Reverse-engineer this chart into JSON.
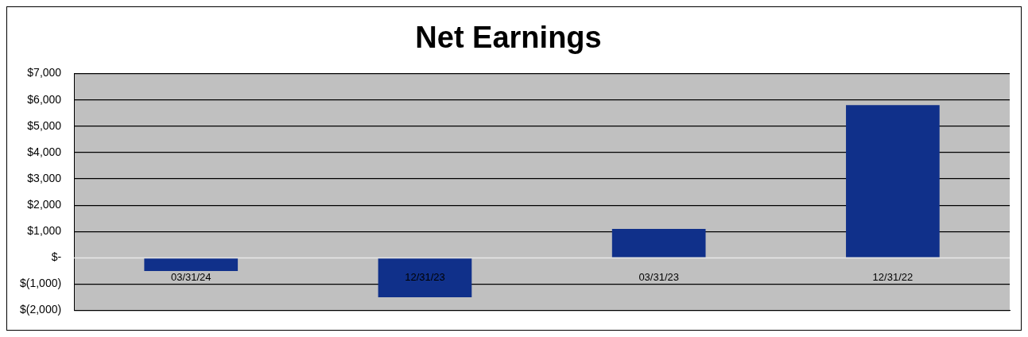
{
  "chart_data": {
    "type": "bar",
    "title": "Net Earnings",
    "categories": [
      "03/31/24",
      "12/31/23",
      "03/31/23",
      "12/31/22"
    ],
    "values": [
      -500,
      -1500,
      1100,
      5800
    ],
    "color": "#10308a",
    "ylim": [
      -2000,
      7000
    ],
    "yticks": [
      {
        "value": -2000,
        "label": "$(2,000)"
      },
      {
        "value": -1000,
        "label": "$(1,000)"
      },
      {
        "value": 0,
        "label": "$-"
      },
      {
        "value": 1000,
        "label": "$1,000"
      },
      {
        "value": 2000,
        "label": "$2,000"
      },
      {
        "value": 3000,
        "label": "$3,000"
      },
      {
        "value": 4000,
        "label": "$4,000"
      },
      {
        "value": 5000,
        "label": "$5,000"
      },
      {
        "value": 6000,
        "label": "$6,000"
      },
      {
        "value": 7000,
        "label": "$7,000"
      }
    ],
    "grid": "y",
    "legend": false
  }
}
